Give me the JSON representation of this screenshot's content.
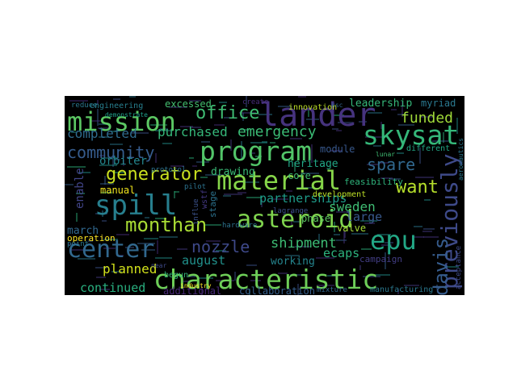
{
  "words": [
    {
      "text": "mission",
      "color": "#5cc863"
    },
    {
      "text": "office",
      "color": "#3fbc73"
    },
    {
      "text": "lander",
      "color": "#46337e"
    },
    {
      "text": "skysat",
      "color": "#35b779"
    },
    {
      "text": "program",
      "color": "#52c569"
    },
    {
      "text": "community",
      "color": "#365c8d"
    },
    {
      "text": "completed",
      "color": "#2f6c8e"
    },
    {
      "text": "purchased",
      "color": "#35b779"
    },
    {
      "text": "emergency",
      "color": "#3bbb75"
    },
    {
      "text": "funded",
      "color": "#a0da39"
    },
    {
      "text": "generator",
      "color": "#cae11f"
    },
    {
      "text": "material",
      "color": "#86d549"
    },
    {
      "text": "spare",
      "color": "#31688e"
    },
    {
      "text": "want",
      "color": "#b5de2b"
    },
    {
      "text": "previously",
      "color": "#3e4a89"
    },
    {
      "text": "spill",
      "color": "#277f8e"
    },
    {
      "text": "monthan",
      "color": "#a8db34"
    },
    {
      "text": "asteroid",
      "color": "#7fd34e"
    },
    {
      "text": "epu",
      "color": "#22a785"
    },
    {
      "text": "center",
      "color": "#31688e"
    },
    {
      "text": "nozzle",
      "color": "#3e4989"
    },
    {
      "text": "shipment",
      "color": "#3dbc74"
    },
    {
      "text": "davis",
      "color": "#365c8d"
    },
    {
      "text": "characteristic",
      "color": "#6ece58"
    },
    {
      "text": "planned",
      "color": "#d2e21b"
    },
    {
      "text": "continued",
      "color": "#29af7f"
    },
    {
      "text": "excessed",
      "color": "#44bf70"
    },
    {
      "text": "leadership",
      "color": "#35b779"
    },
    {
      "text": "myriad",
      "color": "#2a788e"
    },
    {
      "text": "innovation",
      "color": "#bddf26"
    },
    {
      "text": "engineering",
      "color": "#277f8e"
    },
    {
      "text": "orbiter",
      "color": "#24868e"
    },
    {
      "text": "enable",
      "color": "#414487"
    },
    {
      "text": "drawing",
      "color": "#3aba76"
    },
    {
      "text": "heritage",
      "color": "#22a785"
    },
    {
      "text": "core",
      "color": "#3fbc73"
    },
    {
      "text": "feasibility",
      "color": "#2fb47c"
    },
    {
      "text": "partnerships",
      "color": "#1e9c89"
    },
    {
      "text": "sweden",
      "color": "#3fbc73"
    },
    {
      "text": "large",
      "color": "#38588c"
    },
    {
      "text": "march",
      "color": "#31688e"
    },
    {
      "text": "manual",
      "color": "#f1e51d"
    },
    {
      "text": "stage",
      "color": "#2c728e"
    },
    {
      "text": "module",
      "color": "#38588c"
    },
    {
      "text": "different",
      "color": "#22a785"
    },
    {
      "text": "development",
      "color": "#bddf26"
    },
    {
      "text": "valve",
      "color": "#a5db36"
    },
    {
      "text": "phase",
      "color": "#5ec962"
    },
    {
      "text": "august",
      "color": "#21918c"
    },
    {
      "text": "working",
      "color": "#25858e"
    },
    {
      "text": "ecaps",
      "color": "#2db27d"
    },
    {
      "text": "operation",
      "color": "#fde725"
    },
    {
      "text": "collaboration",
      "color": "#355f8d"
    },
    {
      "text": "additional",
      "color": "#482878"
    },
    {
      "text": "mixture",
      "color": "#31688e"
    },
    {
      "text": "manufacturing",
      "color": "#2a788e"
    },
    {
      "text": "acceptance",
      "color": "#3e4a89"
    },
    {
      "text": "campaign",
      "color": "#433e85"
    },
    {
      "text": "reduce",
      "color": "#2a788e"
    },
    {
      "text": "demonstrate",
      "color": "#1f9e89"
    },
    {
      "text": "create",
      "color": "#472d7b"
    },
    {
      "text": "protocol",
      "color": "#2c728e"
    },
    {
      "text": "pilot",
      "color": "#2c728e"
    },
    {
      "text": "begun",
      "color": "#35b779"
    },
    {
      "text": "industry",
      "color": "#fde725"
    },
    {
      "text": "hardware",
      "color": "#2c728e"
    },
    {
      "text": "lunar",
      "color": "#3fbc73"
    },
    {
      "text": "point",
      "color": "#2a788e"
    },
    {
      "text": "aeronautics",
      "color": "#2a788e"
    },
    {
      "text": "ksc",
      "color": "#33638d"
    },
    {
      "text": "wstf",
      "color": "#443983"
    },
    {
      "text": "influe",
      "color": "#3b528b"
    },
    {
      "text": "lagrange",
      "color": "#3b528b"
    },
    {
      "text": "near",
      "color": "#3e4a89"
    }
  ]
}
